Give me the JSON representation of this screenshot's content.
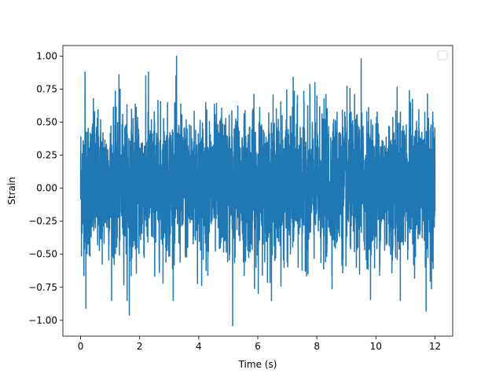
{
  "chart_data": {
    "type": "line",
    "title": "",
    "xlabel": "Time (s)",
    "ylabel": "Strain",
    "xlim": [
      -0.6,
      12.6
    ],
    "ylim": [
      -1.12,
      1.08
    ],
    "xticks": [
      0,
      2,
      4,
      6,
      8,
      10,
      12
    ],
    "xtick_labels": [
      "0",
      "2",
      "4",
      "6",
      "8",
      "10",
      "12"
    ],
    "yticks": [
      -1.0,
      -0.75,
      -0.5,
      -0.25,
      0.0,
      0.25,
      0.5,
      0.75,
      1.0
    ],
    "ytick_labels": [
      "−1.00",
      "−0.75",
      "−0.50",
      "−0.25",
      "0.00",
      "0.25",
      "0.50",
      "0.75",
      "1.00"
    ],
    "grid": false,
    "legend": {
      "placement": "upper-right",
      "entries": []
    },
    "series": [
      {
        "color": "#1f77b4",
        "x_start": 0,
        "x_end": 12,
        "y_typical_range": [
          -0.55,
          0.6
        ],
        "y_extremes": [
          {
            "x": 0.15,
            "y": 0.88
          },
          {
            "x": 0.18,
            "y": -0.91
          },
          {
            "x": 1.3,
            "y": 0.86
          },
          {
            "x": 1.65,
            "y": -0.96
          },
          {
            "x": 2.3,
            "y": 0.88
          },
          {
            "x": 3.25,
            "y": 1.0
          },
          {
            "x": 5.15,
            "y": -1.04
          },
          {
            "x": 7.2,
            "y": 0.84
          },
          {
            "x": 9.5,
            "y": 0.98
          },
          {
            "x": 11.7,
            "y": -0.93
          }
        ]
      }
    ]
  }
}
